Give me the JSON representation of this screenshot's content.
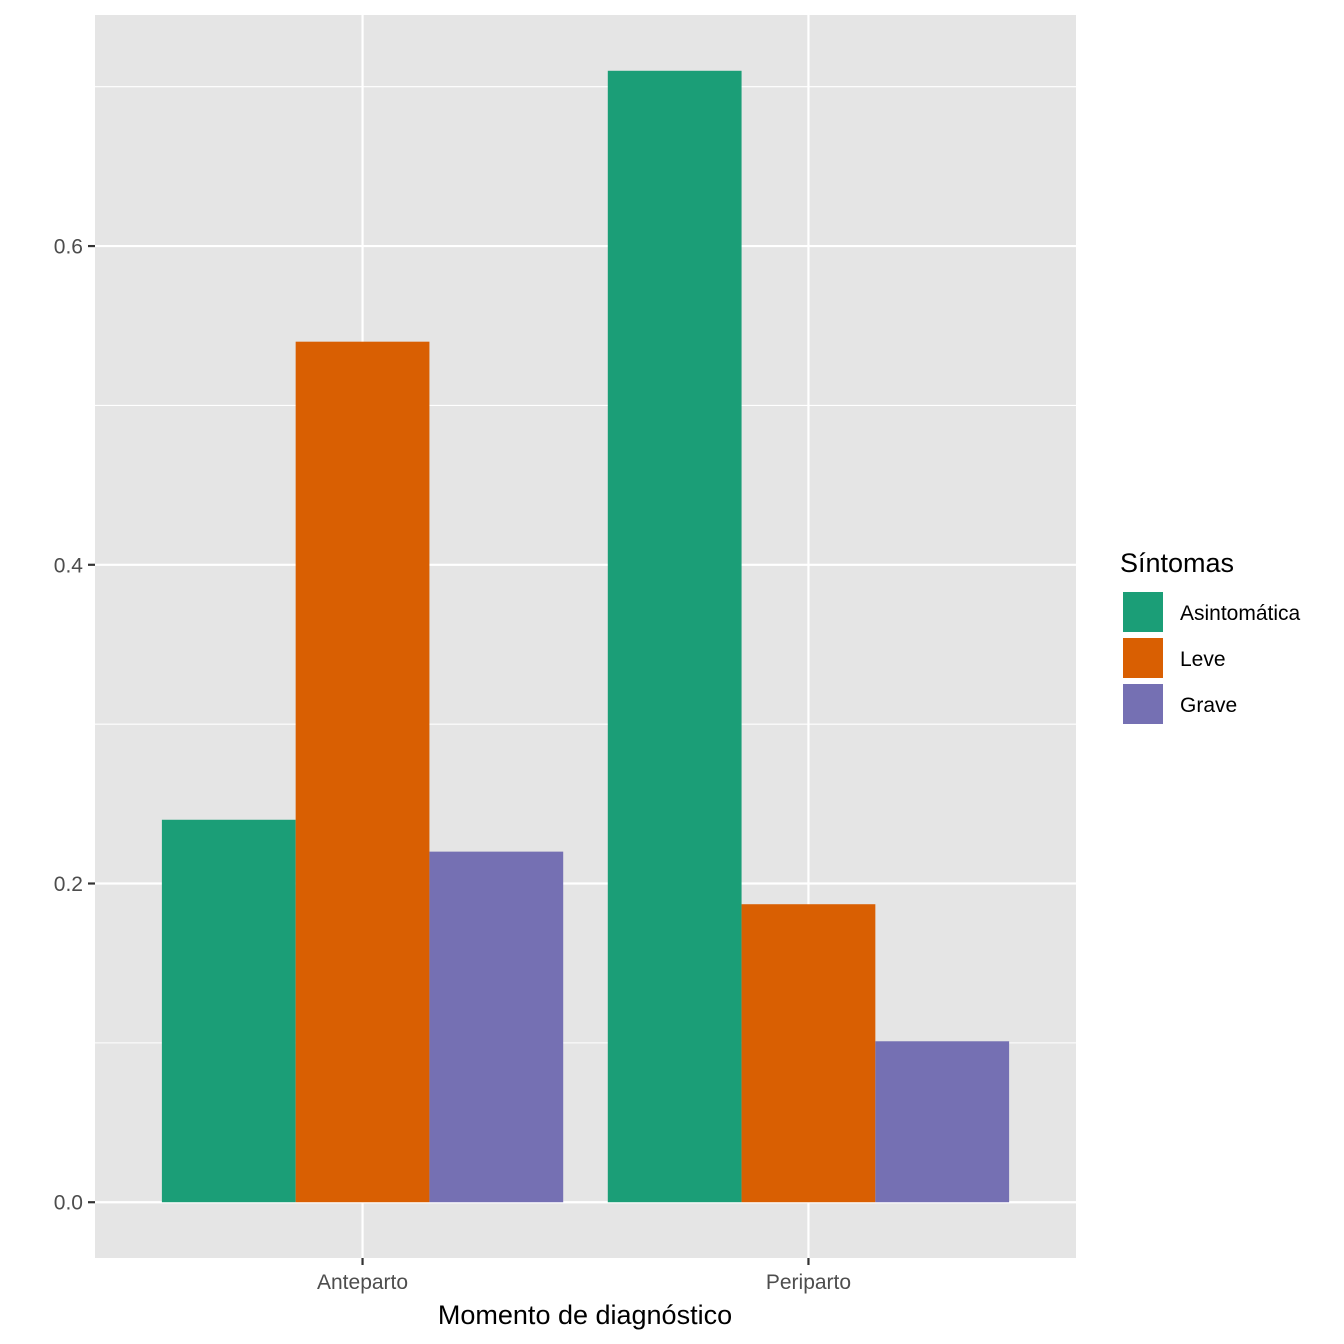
{
  "chart_data": {
    "type": "bar",
    "xlabel": "Momento de diagnóstico",
    "ylabel": "",
    "categories": [
      "Anteparto",
      "Periparto"
    ],
    "series": [
      {
        "name": "Asintomática",
        "color": "#1B9E77",
        "values": [
          0.24,
          0.71
        ]
      },
      {
        "name": "Leve",
        "color": "#D95F02",
        "values": [
          0.54,
          0.187
        ]
      },
      {
        "name": "Grave",
        "color": "#7570B3",
        "values": [
          0.22,
          0.101
        ]
      }
    ],
    "yticks": [
      0.0,
      0.2,
      0.4,
      0.6
    ],
    "ytick_labels": [
      "0.0",
      "0.2",
      "0.4",
      "0.6"
    ],
    "ylim": [
      -0.035,
      0.745
    ],
    "grid": true,
    "legend": {
      "title": "Síntomas",
      "position": "right"
    }
  }
}
